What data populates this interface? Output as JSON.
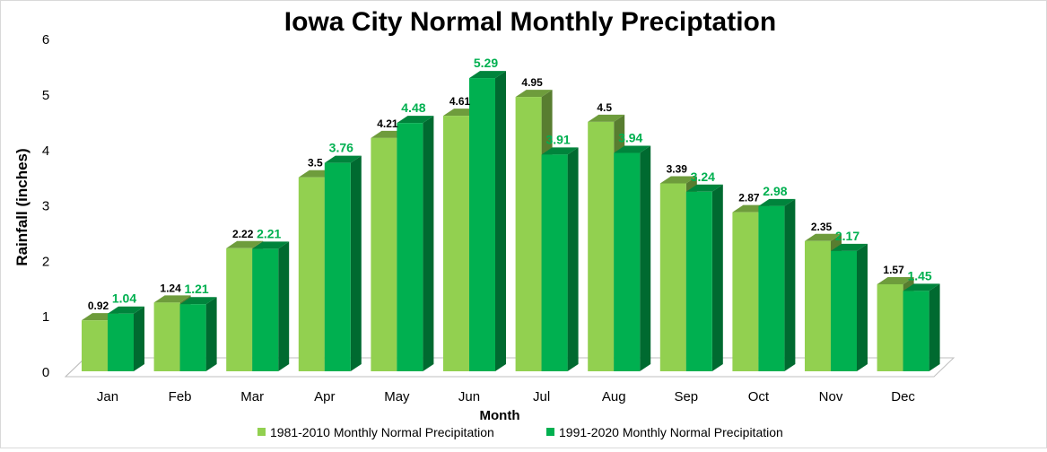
{
  "chart_data": {
    "type": "bar",
    "title": "Iowa City Normal Monthly Preciptation",
    "xlabel": "Month",
    "ylabel": "Rainfall (inches)",
    "ylim": [
      0,
      6
    ],
    "yticks": [
      "0",
      "1",
      "2",
      "3",
      "4",
      "5",
      "6"
    ],
    "grid": false,
    "legend_placement": "bottom",
    "categories": [
      "Jan",
      "Feb",
      "Mar",
      "Apr",
      "May",
      "Jun",
      "Jul",
      "Aug",
      "Sep",
      "Oct",
      "Nov",
      "Dec"
    ],
    "series": [
      {
        "name": "1981-2010 Monthly Normal Precipitation",
        "color": "#92d050",
        "label_color": "#000000",
        "values": [
          0.92,
          1.24,
          2.22,
          3.5,
          4.21,
          4.61,
          4.95,
          4.5,
          3.39,
          2.87,
          2.35,
          1.57
        ]
      },
      {
        "name": "1991-2020 Monthly Normal Precipitation",
        "color": "#00b050",
        "label_color": "#00b050",
        "values": [
          1.04,
          1.21,
          2.21,
          3.76,
          4.48,
          5.29,
          3.91,
          3.94,
          3.24,
          2.98,
          2.17,
          1.45
        ]
      }
    ]
  }
}
